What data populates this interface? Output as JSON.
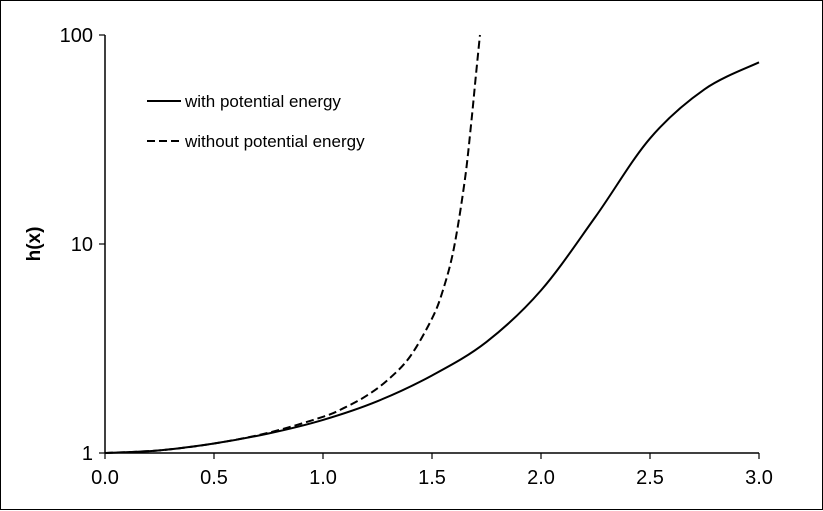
{
  "chart_data": {
    "type": "line",
    "title": "",
    "xlabel": "",
    "ylabel": "h(x)",
    "xlim": [
      0,
      3
    ],
    "ylim": [
      1,
      100
    ],
    "yscale": "log",
    "x_ticks": [
      "0.0",
      "0.5",
      "1.0",
      "1.5",
      "2.0",
      "2.5",
      "3.0"
    ],
    "y_ticks": [
      "1",
      "10",
      "100"
    ],
    "grid": false,
    "legend_position": "top-left",
    "series": [
      {
        "name": "with potential energy",
        "style": "solid",
        "color": "#000000",
        "x": [
          0,
          0.25,
          0.5,
          0.75,
          1.0,
          1.25,
          1.5,
          1.75,
          2.0,
          2.25,
          2.5,
          2.75,
          3.0
        ],
        "y": [
          1.0,
          1.03,
          1.11,
          1.24,
          1.44,
          1.77,
          2.35,
          3.4,
          6.0,
          13.5,
          32,
          55,
          74
        ]
      },
      {
        "name": "without potential energy",
        "style": "dashed",
        "color": "#000000",
        "x": [
          0,
          0.25,
          0.5,
          0.75,
          1.0,
          1.1,
          1.2,
          1.3,
          1.4,
          1.5,
          1.55,
          1.6,
          1.65,
          1.68,
          1.7,
          1.72
        ],
        "y": [
          1.0,
          1.03,
          1.11,
          1.25,
          1.49,
          1.65,
          1.88,
          2.25,
          2.9,
          4.4,
          6.0,
          9.5,
          20,
          38,
          62,
          100
        ]
      }
    ]
  }
}
